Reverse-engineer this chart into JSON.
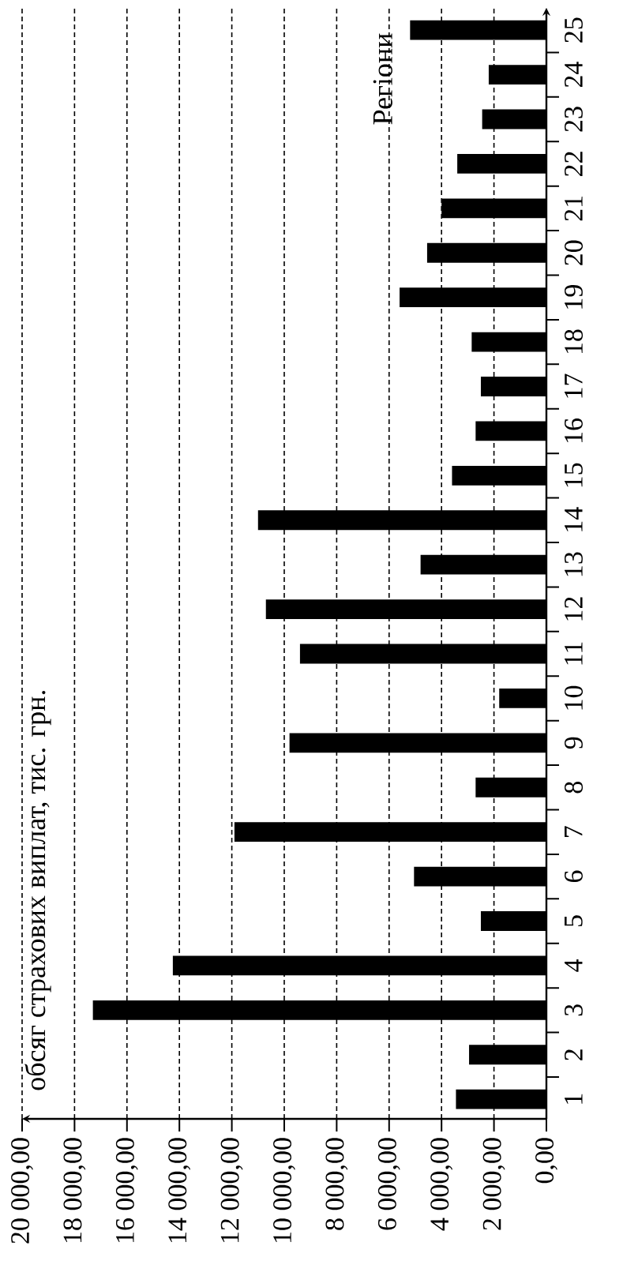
{
  "chart_data": {
    "type": "bar",
    "orientation": "horizontal",
    "annotations": [
      "обсяг страхових виплат, тис. грн."
    ],
    "ylabel": "Регіони",
    "categories": [
      "25",
      "24",
      "23",
      "22",
      "21",
      "20",
      "19",
      "18",
      "17",
      "16",
      "15",
      "14",
      "13",
      "12",
      "11",
      "10",
      "9",
      "8",
      "7",
      "6",
      "5",
      "4",
      "3",
      "2",
      "1"
    ],
    "values": [
      5200,
      2200,
      2450,
      3400,
      4000,
      4550,
      5600,
      2850,
      2500,
      2700,
      3600,
      11000,
      4800,
      10700,
      9400,
      1800,
      9800,
      2700,
      11900,
      5050,
      2500,
      14250,
      17300,
      2950,
      3450
    ],
    "color": "#000000",
    "xlim": [
      20000,
      0
    ],
    "xticks": [
      {
        "value": 0,
        "label": "0,00"
      },
      {
        "value": 2000,
        "label": "2 000,00"
      },
      {
        "value": 4000,
        "label": "4 000,00"
      },
      {
        "value": 6000,
        "label": "6 000,00"
      },
      {
        "value": 8000,
        "label": "8 000,00"
      },
      {
        "value": 10000,
        "label": "10 000,00"
      },
      {
        "value": 12000,
        "label": "12 000,00"
      },
      {
        "value": 14000,
        "label": "14 000,00"
      },
      {
        "value": 16000,
        "label": "16 000,00"
      },
      {
        "value": 18000,
        "label": "18 000,00"
      },
      {
        "value": 20000,
        "label": "20 000,00"
      }
    ],
    "grid": "x"
  }
}
